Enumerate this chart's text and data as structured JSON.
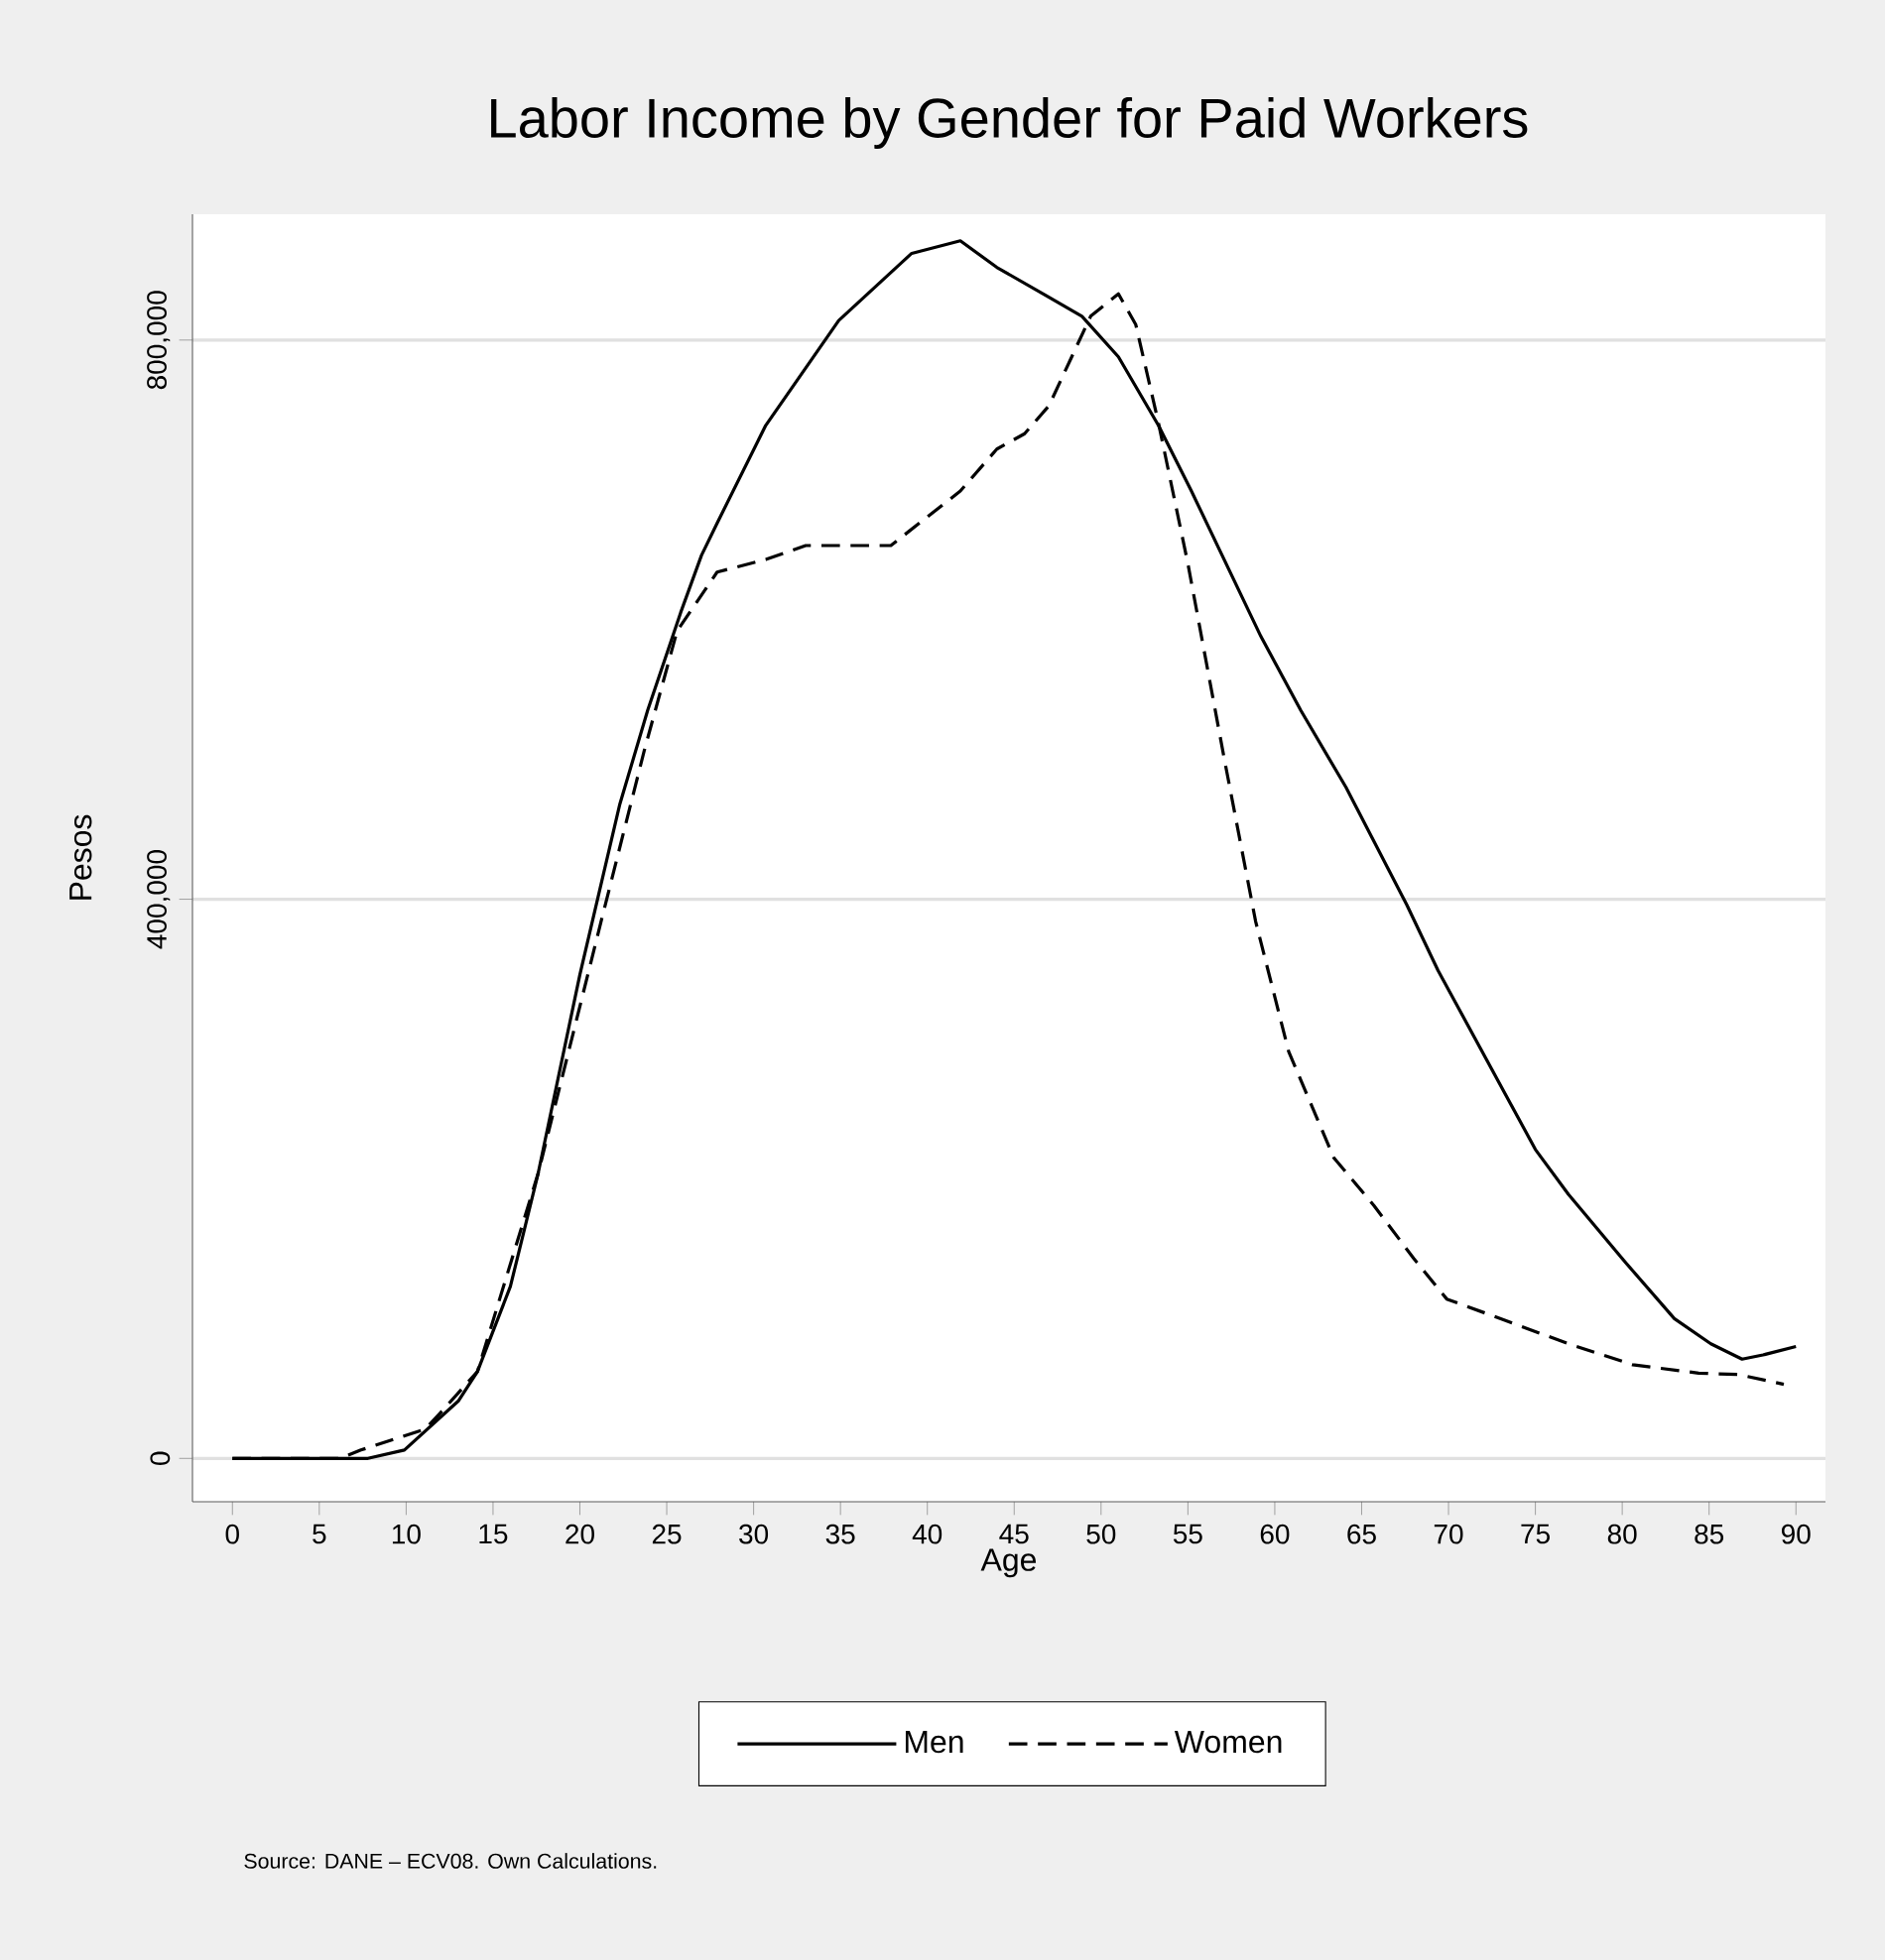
{
  "chart_data": {
    "type": "line",
    "title": "Labor Income by Gender for Paid Workers",
    "xlabel": "Age",
    "ylabel": "Pesos",
    "series": [
      {
        "name": "Men",
        "color": "#000000",
        "line_style": "solid",
        "x": [
          0,
          7.8,
          9.9,
          13,
          14.1,
          16,
          17.6,
          20,
          22.3,
          23.9,
          25.8,
          27,
          27.9,
          30.7,
          34.9,
          39.1,
          41.9,
          44,
          46.8,
          48.9,
          51,
          53.3,
          55.2,
          59.2,
          61.5,
          64.1,
          67.6,
          69.4,
          75,
          76.9,
          80.2,
          83,
          85.1,
          86.9,
          88.1,
          90
        ],
        "values": [
          0,
          0,
          6000,
          41000,
          62000,
          123000,
          204000,
          346000,
          468000,
          535000,
          605000,
          646000,
          669000,
          739000,
          814000,
          862000,
          871000,
          852000,
          832000,
          817000,
          788000,
          739000,
          692000,
          588000,
          535000,
          480000,
          396000,
          349000,
          221000,
          189000,
          140000,
          100000,
          82000,
          71000,
          74000,
          80000
        ]
      },
      {
        "name": "Women",
        "color": "#000000",
        "line_style": "dashed",
        "x": [
          0,
          6.2,
          7.4,
          11.1,
          12,
          14.1,
          17.6,
          21.3,
          23.7,
          25.6,
          27.9,
          30.7,
          33,
          37.9,
          41.9,
          44,
          45.6,
          47,
          49.4,
          51,
          52,
          53.3,
          55,
          57.1,
          58.9,
          60.8,
          63.4,
          65.7,
          68,
          69.9,
          73.2,
          76.9,
          80.6,
          84.4,
          86.7,
          89.3
        ],
        "values": [
          0,
          0,
          6000,
          21000,
          33000,
          62000,
          204000,
          388000,
          506000,
          592000,
          634000,
          643000,
          653000,
          653000,
          692000,
          722000,
          733000,
          753000,
          817000,
          833000,
          811000,
          741000,
          640000,
          500000,
          384000,
          291000,
          215000,
          181000,
          143000,
          114000,
          99000,
          82000,
          67000,
          61000,
          60000,
          53000
        ]
      }
    ],
    "xlim": [
      -2.3,
      91.7
    ],
    "ylim": [
      -31000,
      890000
    ],
    "xticks": [
      0,
      5,
      10,
      15,
      20,
      25,
      30,
      35,
      40,
      45,
      50,
      55,
      60,
      65,
      70,
      75,
      80,
      85,
      90
    ],
    "yticks": [
      0,
      {
        "value": 400000,
        "label": "400,000"
      },
      {
        "value": 800000,
        "label": "800,000"
      }
    ],
    "grid": "y",
    "legend": "bottom",
    "annotations": [
      "Source: DANE – ECV08. Own Calculations."
    ]
  }
}
